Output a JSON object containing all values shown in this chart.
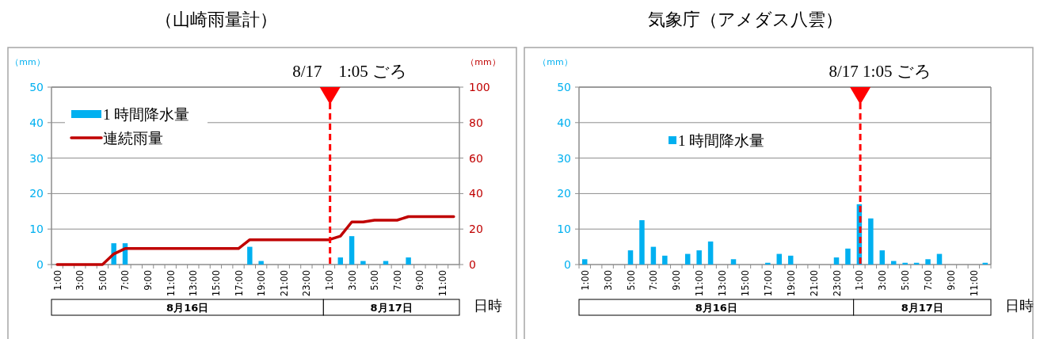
{
  "chart_data": [
    {
      "type": "bar",
      "title": "（山崎雨量計）",
      "xlabel": "日時",
      "ylabel": "（mm）",
      "y2label": "（mm）",
      "x": [
        "--08-16T01:00",
        "--08-16T02:00",
        "--08-16T03:00",
        "--08-16T04:00",
        "--08-16T05:00",
        "--08-16T06:00",
        "--08-16T07:00",
        "--08-16T08:00",
        "--08-16T09:00",
        "--08-16T10:00",
        "--08-16T11:00",
        "--08-16T12:00",
        "--08-16T13:00",
        "--08-16T14:00",
        "--08-16T15:00",
        "--08-16T16:00",
        "--08-16T17:00",
        "--08-16T18:00",
        "--08-16T19:00",
        "--08-16T20:00",
        "--08-16T21:00",
        "--08-16T22:00",
        "--08-16T23:00",
        "--08-17T00:00",
        "--08-17T01:00",
        "--08-17T02:00",
        "--08-17T03:00",
        "--08-17T04:00",
        "--08-17T05:00",
        "--08-17T06:00",
        "--08-17T07:00",
        "--08-17T08:00",
        "--08-17T09:00",
        "--08-17T10:00",
        "--08-17T11:00",
        "--08-17T12:00"
      ],
      "series": [
        {
          "name": "1 時間降水量",
          "color": "#00b0f0",
          "values": [
            0,
            0,
            0,
            0,
            0,
            6,
            6,
            0,
            0,
            0,
            0,
            0,
            0,
            0,
            0,
            0,
            0,
            5,
            1,
            0,
            0,
            0,
            0,
            0,
            0,
            2,
            8,
            1,
            0,
            1,
            0,
            2,
            0,
            0,
            0,
            0
          ]
        },
        {
          "name": "連続雨量",
          "type": "line",
          "axis": "y2",
          "color": "#c00000",
          "values": [
            0,
            0,
            0,
            0,
            0,
            6,
            9,
            9,
            9,
            9,
            9,
            9,
            9,
            9,
            9,
            9,
            9,
            14,
            14,
            14,
            14,
            14,
            14,
            14,
            14,
            16,
            24,
            24,
            25,
            25,
            25,
            27,
            27,
            27,
            27,
            27
          ]
        }
      ],
      "xlim": [
        "--08-16T00:30",
        "--08-17T12:30"
      ],
      "xticks": [
        {
          "value": "--08-16T01:00",
          "label": "1:00"
        },
        {
          "value": "--08-16T03:00",
          "label": "3:00"
        },
        {
          "value": "--08-16T05:00",
          "label": "5:00"
        },
        {
          "value": "--08-16T07:00",
          "label": "7:00"
        },
        {
          "value": "--08-16T09:00",
          "label": "9:00"
        },
        {
          "value": "--08-16T11:00",
          "label": "11:00"
        },
        {
          "value": "--08-16T13:00",
          "label": "13:00"
        },
        {
          "value": "--08-16T15:00",
          "label": "15:00"
        },
        {
          "value": "--08-16T17:00",
          "label": "17:00"
        },
        {
          "value": "--08-16T19:00",
          "label": "19:00"
        },
        {
          "value": "--08-16T21:00",
          "label": "21:00"
        },
        {
          "value": "--08-16T23:00",
          "label": "23:00"
        },
        {
          "value": "--08-17T01:00",
          "label": "1:00"
        },
        {
          "value": "--08-17T03:00",
          "label": "3:00"
        },
        {
          "value": "--08-17T05:00",
          "label": "5:00"
        },
        {
          "value": "--08-17T07:00",
          "label": "7:00"
        },
        {
          "value": "--08-17T09:00",
          "label": "9:00"
        },
        {
          "value": "--08-17T11:00",
          "label": "11:00"
        },
        {
          "value": "--08-16T00:30",
          "label": null
        },
        {
          "value": "--08-16T01:30",
          "label": null
        },
        {
          "value": "--08-16T02:30",
          "label": null
        },
        {
          "value": "--08-16T03:30",
          "label": null
        },
        {
          "value": "--08-16T04:30",
          "label": null
        },
        {
          "value": "--08-16T05:30",
          "label": null
        },
        {
          "value": "--08-16T06:30",
          "label": null
        },
        {
          "value": "--08-16T07:30",
          "label": null
        },
        {
          "value": "--08-16T08:30",
          "label": null
        },
        {
          "value": "--08-16T09:30",
          "label": null
        },
        {
          "value": "--08-16T10:30",
          "label": null
        },
        {
          "value": "--08-16T11:30",
          "label": null
        },
        {
          "value": "--08-16T12:30",
          "label": null
        },
        {
          "value": "--08-16T13:30",
          "label": null
        },
        {
          "value": "--08-16T14:30",
          "label": null
        },
        {
          "value": "--08-16T15:30",
          "label": null
        },
        {
          "value": "--08-16T16:30",
          "label": null
        },
        {
          "value": "--08-16T17:30",
          "label": null
        },
        {
          "value": "--08-16T18:30",
          "label": null
        },
        {
          "value": "--08-16T19:30",
          "label": null
        },
        {
          "value": "--08-16T20:30",
          "label": null
        },
        {
          "value": "--08-16T21:30",
          "label": null
        },
        {
          "value": "--08-16T22:30",
          "label": null
        },
        {
          "value": "--08-16T23:30",
          "label": null
        },
        {
          "value": "--08-17T00:30",
          "label": null
        },
        {
          "value": "--08-17T01:30",
          "label": null
        },
        {
          "value": "--08-17T02:30",
          "label": null
        },
        {
          "value": "--08-17T03:30",
          "label": null
        },
        {
          "value": "--08-17T04:30",
          "label": null
        },
        {
          "value": "--08-17T05:30",
          "label": null
        },
        {
          "value": "--08-17T06:30",
          "label": null
        },
        {
          "value": "--08-17T07:30",
          "label": null
        },
        {
          "value": "--08-17T08:30",
          "label": null
        },
        {
          "value": "--08-17T09:30",
          "label": null
        },
        {
          "value": "--08-17T10:30",
          "label": null
        },
        {
          "value": "--08-17T11:30",
          "label": null
        },
        {
          "value": "--08-17T12:30",
          "label": null
        }
      ],
      "ylim": [
        0,
        50
      ],
      "yticks": [
        0,
        10,
        20,
        30,
        40,
        50
      ],
      "y2lim": [
        0,
        100
      ],
      "y2ticks": [
        0,
        20,
        40,
        60,
        80,
        100
      ],
      "ref_lines": [
        {
          "axis": "x",
          "value": "--08-17T01:05",
          "label": "8/17　1:05 ごろ",
          "color": "#ff0000",
          "line_style": "dashed"
        }
      ],
      "annotations": [
        "8月16日",
        "8月17日"
      ],
      "grid": "y",
      "legend": "top left"
    },
    {
      "type": "bar",
      "title": "気象庁（アメダス八雲）",
      "xlabel": "日時",
      "ylabel": "（mm）",
      "x": [
        "--08-16T01:00",
        "--08-16T02:00",
        "--08-16T03:00",
        "--08-16T04:00",
        "--08-16T05:00",
        "--08-16T06:00",
        "--08-16T07:00",
        "--08-16T08:00",
        "--08-16T09:00",
        "--08-16T10:00",
        "--08-16T11:00",
        "--08-16T12:00",
        "--08-16T13:00",
        "--08-16T14:00",
        "--08-16T15:00",
        "--08-16T16:00",
        "--08-16T17:00",
        "--08-16T18:00",
        "--08-16T19:00",
        "--08-16T20:00",
        "--08-16T21:00",
        "--08-16T22:00",
        "--08-16T23:00",
        "--08-17T00:00",
        "--08-17T01:00",
        "--08-17T02:00",
        "--08-17T03:00",
        "--08-17T04:00",
        "--08-17T05:00",
        "--08-17T06:00",
        "--08-17T07:00",
        "--08-17T08:00",
        "--08-17T09:00",
        "--08-17T10:00",
        "--08-17T11:00",
        "--08-17T12:00"
      ],
      "series": [
        {
          "name": "1 時間降水量",
          "color": "#00b0f0",
          "values": [
            1.5,
            0,
            0,
            0,
            4,
            12.5,
            5,
            2.5,
            0,
            3,
            4,
            6.5,
            0,
            1.5,
            0,
            0,
            0.5,
            3,
            2.5,
            0,
            0,
            0,
            2,
            4.5,
            17,
            13,
            4,
            1,
            0.5,
            0.5,
            1.5,
            3,
            0,
            0,
            0,
            0.5
          ]
        }
      ],
      "xlim": [
        "--08-16T00:30",
        "--08-17T12:30"
      ],
      "xticks": [
        {
          "value": "--08-16T01:00",
          "label": "1:00"
        },
        {
          "value": "--08-16T03:00",
          "label": "3:00"
        },
        {
          "value": "--08-16T05:00",
          "label": "5:00"
        },
        {
          "value": "--08-16T07:00",
          "label": "7:00"
        },
        {
          "value": "--08-16T09:00",
          "label": "9:00"
        },
        {
          "value": "--08-16T11:00",
          "label": "11:00"
        },
        {
          "value": "--08-16T13:00",
          "label": "13:00"
        },
        {
          "value": "--08-16T15:00",
          "label": "15:00"
        },
        {
          "value": "--08-16T17:00",
          "label": "17:00"
        },
        {
          "value": "--08-16T19:00",
          "label": "19:00"
        },
        {
          "value": "--08-16T21:00",
          "label": "21:00"
        },
        {
          "value": "--08-16T23:00",
          "label": "23:00"
        },
        {
          "value": "--08-17T01:00",
          "label": "1:00"
        },
        {
          "value": "--08-17T03:00",
          "label": "3:00"
        },
        {
          "value": "--08-17T05:00",
          "label": "5:00"
        },
        {
          "value": "--08-17T07:00",
          "label": "7:00"
        },
        {
          "value": "--08-17T09:00",
          "label": "9:00"
        },
        {
          "value": "--08-17T11:00",
          "label": "11:00"
        },
        {
          "value": "--08-16T00:30",
          "label": null
        },
        {
          "value": "--08-16T01:30",
          "label": null
        },
        {
          "value": "--08-16T02:30",
          "label": null
        },
        {
          "value": "--08-16T03:30",
          "label": null
        },
        {
          "value": "--08-16T04:30",
          "label": null
        },
        {
          "value": "--08-16T05:30",
          "label": null
        },
        {
          "value": "--08-16T06:30",
          "label": null
        },
        {
          "value": "--08-16T07:30",
          "label": null
        },
        {
          "value": "--08-16T08:30",
          "label": null
        },
        {
          "value": "--08-16T09:30",
          "label": null
        },
        {
          "value": "--08-16T10:30",
          "label": null
        },
        {
          "value": "--08-16T11:30",
          "label": null
        },
        {
          "value": "--08-16T12:30",
          "label": null
        },
        {
          "value": "--08-16T13:30",
          "label": null
        },
        {
          "value": "--08-16T14:30",
          "label": null
        },
        {
          "value": "--08-16T15:30",
          "label": null
        },
        {
          "value": "--08-16T16:30",
          "label": null
        },
        {
          "value": "--08-16T17:30",
          "label": null
        },
        {
          "value": "--08-16T18:30",
          "label": null
        },
        {
          "value": "--08-16T19:30",
          "label": null
        },
        {
          "value": "--08-16T20:30",
          "label": null
        },
        {
          "value": "--08-16T21:30",
          "label": null
        },
        {
          "value": "--08-16T22:30",
          "label": null
        },
        {
          "value": "--08-16T23:30",
          "label": null
        },
        {
          "value": "--08-17T00:30",
          "label": null
        },
        {
          "value": "--08-17T01:30",
          "label": null
        },
        {
          "value": "--08-17T02:30",
          "label": null
        },
        {
          "value": "--08-17T03:30",
          "label": null
        },
        {
          "value": "--08-17T04:30",
          "label": null
        },
        {
          "value": "--08-17T05:30",
          "label": null
        },
        {
          "value": "--08-17T06:30",
          "label": null
        },
        {
          "value": "--08-17T07:30",
          "label": null
        },
        {
          "value": "--08-17T08:30",
          "label": null
        },
        {
          "value": "--08-17T09:30",
          "label": null
        },
        {
          "value": "--08-17T10:30",
          "label": null
        },
        {
          "value": "--08-17T11:30",
          "label": null
        },
        {
          "value": "--08-17T12:30",
          "label": null
        }
      ],
      "ylim": [
        0,
        50
      ],
      "yticks": [
        0,
        10,
        20,
        30,
        40,
        50
      ],
      "ref_lines": [
        {
          "axis": "x",
          "value": "--08-17T01:05",
          "label": "8/17 1:05 ごろ",
          "color": "#ff0000",
          "line_style": "dashed"
        }
      ],
      "annotations": [
        "8月16日",
        "8月17日"
      ],
      "grid": "y",
      "legend": "top left"
    }
  ]
}
